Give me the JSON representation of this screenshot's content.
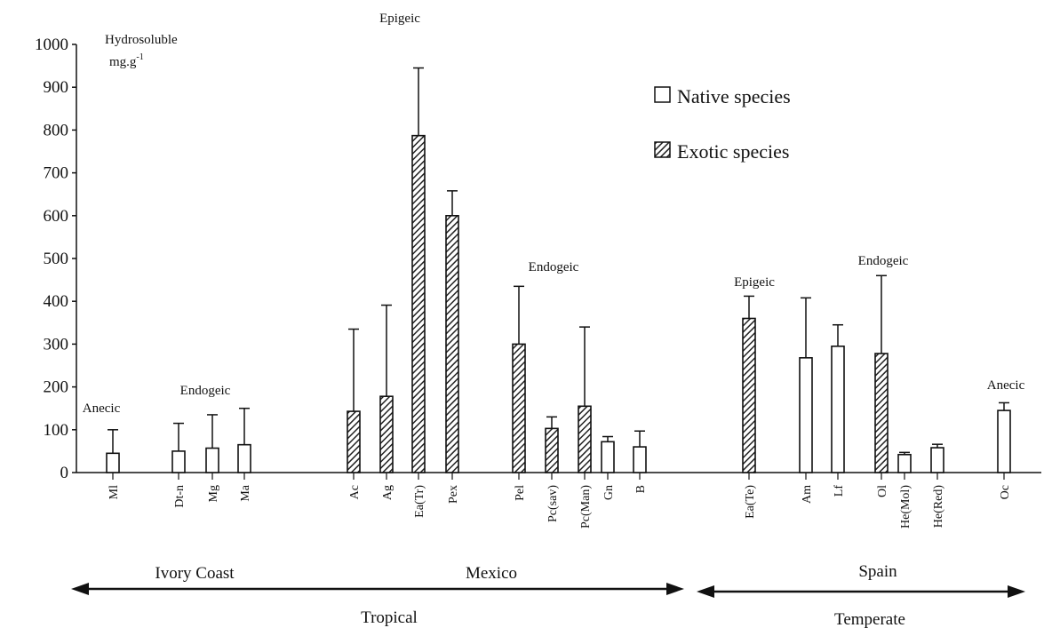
{
  "chart_data": {
    "type": "bar",
    "ylabel": "Hydrosoluble",
    "yunit": "mg.g",
    "yunit_exp": "-1",
    "ylim": [
      0,
      1000
    ],
    "yticks": [
      0,
      100,
      200,
      300,
      400,
      500,
      600,
      700,
      800,
      900,
      1000
    ],
    "grid": false,
    "legend_position": "top-right",
    "legend": [
      {
        "label": "Native species",
        "style": "open",
        "fill": "#ffffff"
      },
      {
        "label": "Exotic species",
        "style": "hatched",
        "fill": "#555555"
      }
    ],
    "bars": [
      {
        "label": "Ml",
        "value": 45,
        "error": 55,
        "group": "native"
      },
      {
        "label": "Dt-n",
        "value": 50,
        "error": 65,
        "group": "native"
      },
      {
        "label": "Mg",
        "value": 57,
        "error": 78,
        "group": "native"
      },
      {
        "label": "Ma",
        "value": 65,
        "error": 85,
        "group": "native"
      },
      {
        "label": "Ac",
        "value": 143,
        "error": 192,
        "group": "exotic"
      },
      {
        "label": "Ag",
        "value": 178,
        "error": 213,
        "group": "exotic"
      },
      {
        "label": "Ea(Tr)",
        "value": 787,
        "error": 158,
        "group": "exotic"
      },
      {
        "label": "Pex",
        "value": 600,
        "error": 58,
        "group": "exotic"
      },
      {
        "label": "Pel",
        "value": 300,
        "error": 135,
        "group": "exotic"
      },
      {
        "label": "Pc(sav)",
        "value": 103,
        "error": 27,
        "group": "exotic"
      },
      {
        "label": "Pc(Man)",
        "value": 155,
        "error": 185,
        "group": "exotic"
      },
      {
        "label": "Gn",
        "value": 72,
        "error": 12,
        "group": "native"
      },
      {
        "label": "B",
        "value": 60,
        "error": 37,
        "group": "native"
      },
      {
        "label": "Ea(Te)",
        "value": 360,
        "error": 52,
        "group": "exotic"
      },
      {
        "label": "Am",
        "value": 268,
        "error": 140,
        "group": "native"
      },
      {
        "label": "Lf",
        "value": 295,
        "error": 50,
        "group": "native"
      },
      {
        "label": "Ol",
        "value": 278,
        "error": 182,
        "group": "exotic"
      },
      {
        "label": "He(Mol)",
        "value": 42,
        "error": 5,
        "group": "native"
      },
      {
        "label": "He(Red)",
        "value": 58,
        "error": 8,
        "group": "native"
      },
      {
        "label": "Oc",
        "value": 145,
        "error": 18,
        "group": "native"
      }
    ],
    "annotations": [
      {
        "text": "Anecic",
        "over": "Ml"
      },
      {
        "text": "Endogeic",
        "over": "Mg"
      },
      {
        "text": "Epigeic",
        "over": "Ea(Tr)"
      },
      {
        "text": "Endogeic",
        "over": "Pc(sav)"
      },
      {
        "text": "Epigeic",
        "over": "Ea(Te)"
      },
      {
        "text": "Endogeic",
        "over": "Ol"
      },
      {
        "text": "Anecic",
        "over": "Oc"
      }
    ],
    "regions": [
      {
        "label": "Ivory Coast"
      },
      {
        "label": "Mexico"
      },
      {
        "label": "Spain"
      }
    ],
    "climate": [
      {
        "label": "Tropical"
      },
      {
        "label": "Temperate"
      }
    ]
  }
}
